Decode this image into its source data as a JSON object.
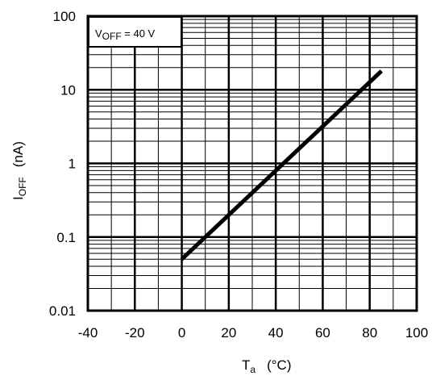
{
  "chart_data": {
    "type": "line",
    "x_ticks": [
      -40,
      -20,
      0,
      20,
      40,
      60,
      80,
      100
    ],
    "x_tick_labels": [
      "-40",
      "-20",
      "0",
      "20",
      "40",
      "60",
      "80",
      "100"
    ],
    "y_ticks": [
      0.01,
      0.1,
      1,
      10,
      100
    ],
    "y_tick_labels": [
      "0.01",
      "0.1",
      "1",
      "10",
      "100"
    ],
    "xlim": [
      -40,
      100
    ],
    "ylim": [
      0.01,
      100
    ],
    "yscale": "log",
    "grid": true,
    "xlabel": {
      "main": "T",
      "sub": "a",
      "unit": "(°C)"
    },
    "ylabel": {
      "main": "I",
      "sub": "OFF",
      "unit": "(nA)"
    },
    "annotation": {
      "main": "V",
      "sub": "OFF",
      "rest": " = 40 V"
    },
    "series": [
      {
        "x": [
          0,
          85
        ],
        "y": [
          0.05,
          18
        ]
      }
    ]
  }
}
